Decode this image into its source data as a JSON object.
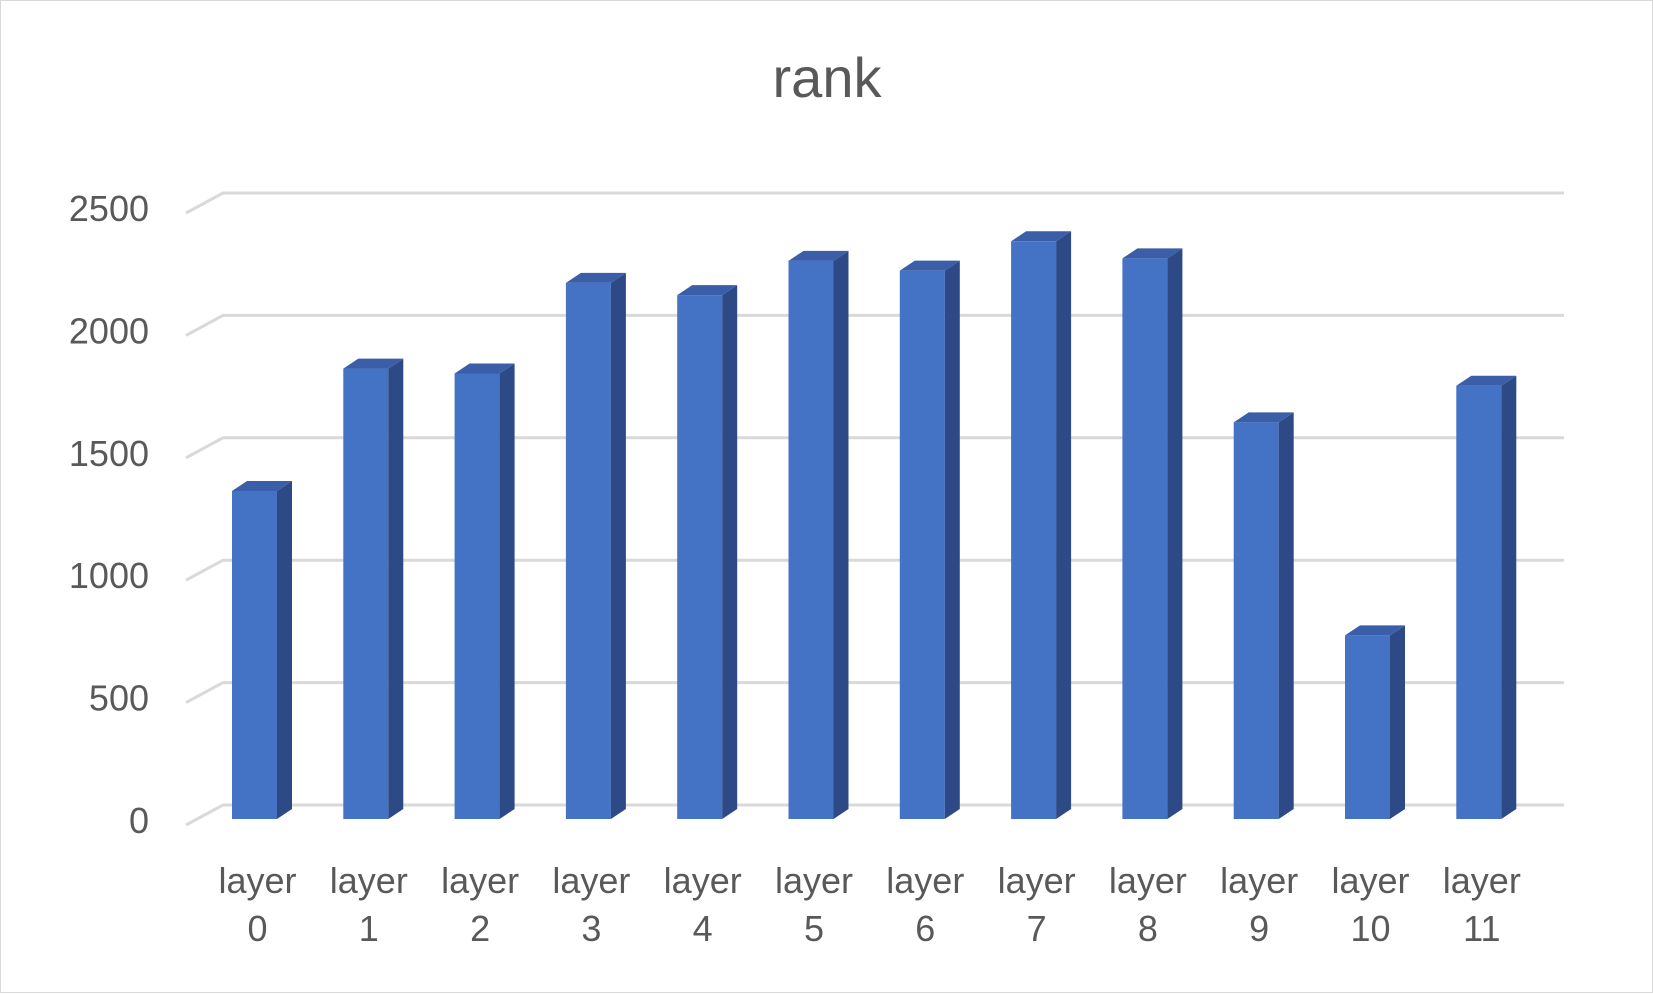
{
  "chart_data": {
    "type": "bar",
    "title": "rank",
    "xlabel": "",
    "ylabel": "",
    "categories": [
      [
        "layer",
        "0"
      ],
      [
        "layer",
        "1"
      ],
      [
        "layer",
        "2"
      ],
      [
        "layer",
        "3"
      ],
      [
        "layer",
        "4"
      ],
      [
        "layer",
        "5"
      ],
      [
        "layer",
        "6"
      ],
      [
        "layer",
        "7"
      ],
      [
        "layer",
        "8"
      ],
      [
        "layer",
        "9"
      ],
      [
        "layer",
        "10"
      ],
      [
        "layer",
        "11"
      ]
    ],
    "values": [
      1340,
      1840,
      1820,
      2190,
      2140,
      2280,
      2240,
      2360,
      2290,
      1620,
      750,
      1770
    ],
    "ylim": [
      0,
      2500
    ],
    "yticks": [
      "0",
      "500",
      "1000",
      "1500",
      "2000",
      "2500"
    ],
    "grid": true,
    "legend": "none",
    "style": "3d-column",
    "colors": {
      "front": "#4472c4",
      "side": "#2e4a86",
      "top": "#3a5fa8",
      "grid": "#d9d9d9",
      "text": "#595959"
    }
  }
}
